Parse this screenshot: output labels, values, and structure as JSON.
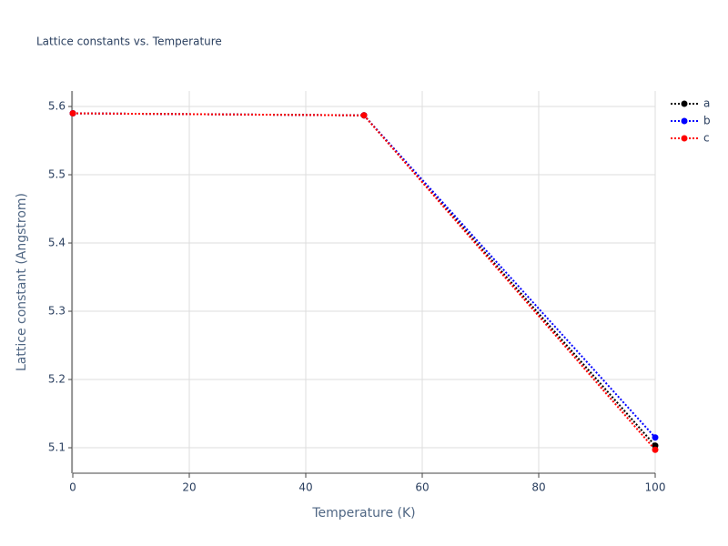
{
  "chart_data": {
    "type": "line",
    "title": "Lattice constants vs. Temperature",
    "x_label": "Temperature (K)",
    "y_label": "Lattice constant (Angstrom)",
    "x": [
      0,
      50,
      100
    ],
    "series": [
      {
        "name": "a",
        "color": "#000000",
        "values": [
          5.59,
          5.587,
          5.103
        ]
      },
      {
        "name": "b",
        "color": "#0000ff",
        "values": [
          5.59,
          5.587,
          5.115
        ]
      },
      {
        "name": "c",
        "color": "#ff0000",
        "values": [
          5.59,
          5.587,
          5.097
        ]
      }
    ],
    "xlim": [
      0,
      100
    ],
    "xticks": [
      0,
      20,
      40,
      60,
      80,
      100
    ],
    "ylim": [
      5.0627,
      5.6227
    ],
    "yticks": [
      5.1,
      5.2,
      5.3,
      5.4,
      5.5,
      5.6
    ],
    "grid": true,
    "legend": "right"
  }
}
